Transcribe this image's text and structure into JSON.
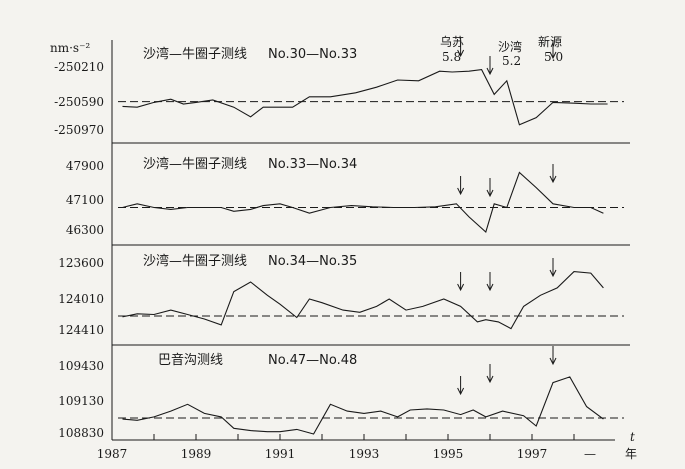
{
  "chart_data": {
    "type": "line",
    "y_unit": "nm·s⁻²",
    "x_axis": {
      "label": "t",
      "unit": "年",
      "range": [
        1987,
        1999
      ],
      "ticks": [
        1987,
        1989,
        1991,
        1993,
        1995,
        1997
      ],
      "extra_tick_label": "—"
    },
    "earthquakes": [
      {
        "name": "乌苏",
        "magnitude": "5.8",
        "year": 1995.3
      },
      {
        "name": "沙湾",
        "magnitude": "5.2",
        "year": 1996.0
      },
      {
        "name": "新源",
        "magnitude": "5.0",
        "year": 1997.5
      }
    ],
    "panels": [
      {
        "title": "沙湾—牛圈子测线",
        "range_label": "No.30—No.33",
        "yticks": [
          "-250210",
          "-250590",
          "-250970"
        ],
        "ylim": [
          -251010,
          -250110
        ],
        "reference": -250630,
        "x": [
          1987.25,
          1987.6,
          1988.0,
          1988.4,
          1988.7,
          1989.0,
          1989.4,
          1989.9,
          1990.3,
          1990.6,
          1991.0,
          1991.3,
          1991.7,
          1992.2,
          1992.8,
          1993.3,
          1993.8,
          1994.3,
          1994.8,
          1995.1,
          1995.5,
          1995.8,
          1996.1,
          1996.4,
          1996.7,
          1997.1,
          1997.5,
          1998.0,
          1998.4,
          1998.8
        ],
        "y": [
          -250690,
          -250700,
          -250640,
          -250600,
          -250660,
          -250640,
          -250610,
          -250700,
          -250820,
          -250700,
          -250700,
          -250700,
          -250570,
          -250570,
          -250520,
          -250450,
          -250360,
          -250370,
          -250250,
          -250260,
          -250250,
          -250230,
          -250540,
          -250370,
          -250920,
          -250830,
          -250640,
          -250650,
          -250660,
          -250660
        ]
      },
      {
        "title": "沙湾—牛圈子测线",
        "range_label": "No.33—No.34",
        "yticks": [
          "47900",
          "47100",
          "46300"
        ],
        "ylim": [
          46300,
          48000
        ],
        "reference": 46950,
        "x": [
          1987.25,
          1987.6,
          1988.0,
          1988.4,
          1988.8,
          1989.2,
          1989.6,
          1989.9,
          1990.3,
          1990.6,
          1991.0,
          1991.3,
          1991.7,
          1992.2,
          1992.7,
          1993.2,
          1993.7,
          1994.2,
          1994.7,
          1995.2,
          1995.5,
          1995.9,
          1996.1,
          1996.4,
          1996.7,
          1997.1,
          1997.5,
          1998.0,
          1998.4,
          1998.7
        ],
        "y": [
          46950,
          47050,
          46950,
          46900,
          46950,
          46950,
          46950,
          46850,
          46900,
          47000,
          47050,
          46950,
          46800,
          46950,
          47000,
          46970,
          46950,
          46950,
          46970,
          47050,
          46700,
          46300,
          47050,
          46950,
          47880,
          47480,
          47050,
          46950,
          46950,
          46800
        ]
      },
      {
        "title": "沙湾—牛圈子测线",
        "range_label": "No.34—No.35",
        "yticks": [
          "123600",
          "124010",
          "124410"
        ],
        "ylim": [
          -124550,
          -123550
        ],
        "reference": -124280,
        "x": [
          1987.25,
          1987.6,
          1988.0,
          1988.4,
          1988.8,
          1989.2,
          1989.6,
          1989.9,
          1990.3,
          1990.7,
          1991.0,
          1991.4,
          1991.7,
          1992.0,
          1992.5,
          1992.9,
          1993.3,
          1993.6,
          1994.0,
          1994.4,
          1994.9,
          1995.3,
          1995.7,
          1995.9,
          1996.2,
          1996.5,
          1996.8,
          1997.2,
          1997.6,
          1998.0,
          1998.4,
          1998.7
        ],
        "y": [
          -124290,
          -124250,
          -124260,
          -124200,
          -124260,
          -124320,
          -124400,
          -123950,
          -123820,
          -124000,
          -124120,
          -124300,
          -124050,
          -124100,
          -124200,
          -124230,
          -124150,
          -124050,
          -124200,
          -124150,
          -124050,
          -124150,
          -124360,
          -124330,
          -124360,
          -124450,
          -124150,
          -124000,
          -123900,
          -123680,
          -123700,
          -123900
        ]
      },
      {
        "title": "巴音沟测线",
        "range_label": "No.47—No.48",
        "yticks": [
          "109430",
          "109130",
          "108830"
        ],
        "ylim": [
          108850,
          109480
        ],
        "reference": 108990,
        "x": [
          1987.25,
          1987.6,
          1988.0,
          1988.4,
          1988.8,
          1989.2,
          1989.6,
          1989.9,
          1990.3,
          1990.7,
          1991.0,
          1991.4,
          1991.8,
          1992.2,
          1992.6,
          1993.0,
          1993.4,
          1993.8,
          1994.1,
          1994.5,
          1994.9,
          1995.3,
          1995.6,
          1995.9,
          1996.3,
          1996.8,
          1997.1,
          1997.5,
          1997.9,
          1998.3,
          1998.7
        ],
        "y": [
          108980,
          108970,
          109000,
          109050,
          109110,
          109030,
          109000,
          108900,
          108880,
          108870,
          108870,
          108890,
          108850,
          109110,
          109050,
          109030,
          109050,
          109000,
          109060,
          109070,
          109060,
          109020,
          109060,
          109000,
          109050,
          109010,
          108920,
          109300,
          109350,
          109090,
          108980
        ]
      }
    ]
  }
}
